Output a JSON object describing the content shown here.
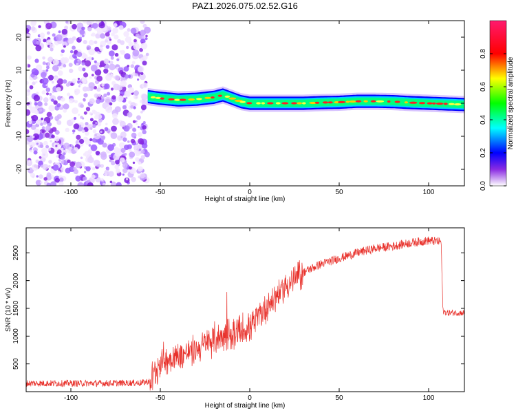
{
  "title": "PAZ1.2026.075.02.52.G16",
  "chart_data": [
    {
      "type": "heatmap",
      "name": "spectrogram",
      "xlabel": "Height of straight line (km)",
      "ylabel": "Frequency (Hz)",
      "xlim": [
        -125,
        120
      ],
      "ylim": [
        -25,
        25
      ],
      "xticks": [
        -100,
        -50,
        0,
        50,
        100
      ],
      "yticks": [
        20,
        10,
        0,
        -10,
        -20
      ],
      "noise_region_x": [
        -125,
        -57
      ],
      "signal_ridge": {
        "x": [
          -57,
          -50,
          -40,
          -30,
          -20,
          -15,
          -10,
          -5,
          0,
          10,
          20,
          30,
          40,
          50,
          60,
          70,
          80,
          90,
          100,
          110,
          120
        ],
        "freq": [
          2.0,
          1.5,
          1.0,
          1.2,
          1.8,
          2.5,
          1.5,
          0.5,
          0.0,
          0.0,
          0.0,
          0.0,
          0.2,
          0.3,
          0.6,
          0.6,
          0.5,
          0.2,
          0.0,
          -0.2,
          -0.4
        ]
      },
      "colorbar": {
        "label": "Normalized spectral amplitude",
        "range": [
          0.0,
          1.0
        ],
        "ticks": [
          "0.0",
          "0.2",
          "0.4",
          "0.6",
          "0.8"
        ]
      }
    },
    {
      "type": "line",
      "name": "snr",
      "xlabel": "Height of straight line (km)",
      "ylabel": "SNR (10 * v/v)",
      "xlim": [
        -125,
        120
      ],
      "ylim": [
        0,
        2950
      ],
      "xticks": [
        -100,
        -50,
        0,
        50,
        100
      ],
      "yticks": [
        500,
        1000,
        1500,
        2000,
        2500
      ],
      "color": "#e8302a",
      "trend": {
        "x": [
          -125,
          -100,
          -80,
          -60,
          -55,
          -50,
          -40,
          -30,
          -20,
          -10,
          0,
          10,
          20,
          30,
          40,
          50,
          60,
          70,
          80,
          90,
          100,
          107,
          108,
          110,
          120
        ],
        "y": [
          150,
          150,
          150,
          160,
          200,
          550,
          650,
          750,
          950,
          1050,
          1150,
          1550,
          1900,
          2150,
          2300,
          2400,
          2500,
          2580,
          2620,
          2680,
          2720,
          2700,
          1450,
          1420,
          1420
        ]
      }
    }
  ]
}
